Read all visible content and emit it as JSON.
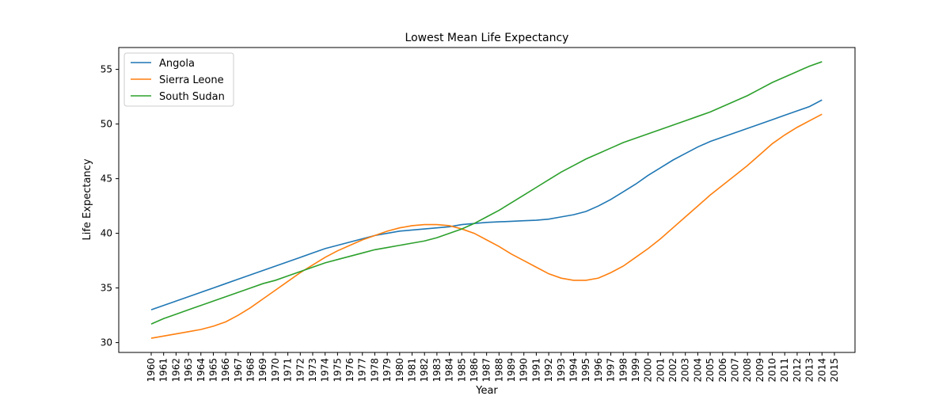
{
  "chart_data": {
    "type": "line",
    "title": "Lowest Mean Life Expectancy",
    "xlabel": "Year",
    "ylabel": "Life Expectancy",
    "categories": [
      "1960",
      "1961",
      "1962",
      "1963",
      "1964",
      "1965",
      "1966",
      "1967",
      "1968",
      "1969",
      "1970",
      "1971",
      "1972",
      "1973",
      "1974",
      "1975",
      "1976",
      "1977",
      "1978",
      "1979",
      "1980",
      "1981",
      "1982",
      "1983",
      "1984",
      "1985",
      "1986",
      "1987",
      "1988",
      "1989",
      "1990",
      "1991",
      "1992",
      "1993",
      "1994",
      "1995",
      "1996",
      "1997",
      "1998",
      "1999",
      "2000",
      "2001",
      "2002",
      "2003",
      "2004",
      "2005",
      "2006",
      "2007",
      "2008",
      "2009",
      "2010",
      "2011",
      "2012",
      "2013",
      "2014",
      "2015"
    ],
    "series": [
      {
        "name": "Angola",
        "color": "#1f77b4",
        "values": [
          33.0,
          33.4,
          33.8,
          34.2,
          34.6,
          35.0,
          35.4,
          35.8,
          36.2,
          36.6,
          37.0,
          37.4,
          37.8,
          38.2,
          38.6,
          38.9,
          39.2,
          39.5,
          39.8,
          40.0,
          40.2,
          40.3,
          40.4,
          40.5,
          40.6,
          40.8,
          40.9,
          41.0,
          41.05,
          41.1,
          41.15,
          41.2,
          41.3,
          41.5,
          41.7,
          42.0,
          42.5,
          43.1,
          43.8,
          44.5,
          45.3,
          46.0,
          46.7,
          47.3,
          47.9,
          48.4,
          48.8,
          49.2,
          49.6,
          50.0,
          50.4,
          50.8,
          51.2,
          51.6,
          52.2,
          null
        ]
      },
      {
        "name": "Sierra Leone",
        "color": "#ff7f0e",
        "values": [
          30.4,
          30.6,
          30.8,
          31.0,
          31.2,
          31.5,
          31.9,
          32.5,
          33.2,
          34.0,
          34.8,
          35.6,
          36.4,
          37.1,
          37.8,
          38.4,
          38.9,
          39.4,
          39.8,
          40.2,
          40.5,
          40.7,
          40.8,
          40.8,
          40.7,
          40.4,
          40.0,
          39.4,
          38.8,
          38.1,
          37.5,
          36.9,
          36.3,
          35.9,
          35.7,
          35.7,
          35.9,
          36.4,
          37.0,
          37.8,
          38.6,
          39.5,
          40.5,
          41.5,
          42.5,
          43.5,
          44.4,
          45.3,
          46.2,
          47.2,
          48.2,
          49.0,
          49.7,
          50.3,
          50.9,
          null
        ]
      },
      {
        "name": "South Sudan",
        "color": "#2ca02c",
        "values": [
          31.7,
          32.2,
          32.6,
          33.0,
          33.4,
          33.8,
          34.2,
          34.6,
          35.0,
          35.4,
          35.7,
          36.1,
          36.5,
          36.9,
          37.3,
          37.6,
          37.9,
          38.2,
          38.5,
          38.7,
          38.9,
          39.1,
          39.3,
          39.6,
          40.0,
          40.4,
          40.9,
          41.5,
          42.1,
          42.8,
          43.5,
          44.2,
          44.9,
          45.6,
          46.2,
          46.8,
          47.3,
          47.8,
          48.3,
          48.7,
          49.1,
          49.5,
          49.9,
          50.3,
          50.7,
          51.1,
          51.6,
          52.1,
          52.6,
          53.2,
          53.8,
          54.3,
          54.8,
          55.3,
          55.7,
          null
        ]
      }
    ],
    "ylim": [
      29.1,
      57.0
    ],
    "yticks": [
      30,
      35,
      40,
      45,
      50,
      55
    ],
    "legend": "upper left"
  }
}
